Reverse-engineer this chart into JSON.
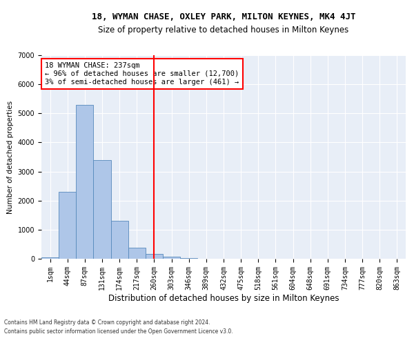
{
  "title1": "18, WYMAN CHASE, OXLEY PARK, MILTON KEYNES, MK4 4JT",
  "title2": "Size of property relative to detached houses in Milton Keynes",
  "xlabel": "Distribution of detached houses by size in Milton Keynes",
  "ylabel": "Number of detached properties",
  "footnote1": "Contains HM Land Registry data © Crown copyright and database right 2024.",
  "footnote2": "Contains public sector information licensed under the Open Government Licence v3.0.",
  "categories": [
    "1sqm",
    "44sqm",
    "87sqm",
    "131sqm",
    "174sqm",
    "217sqm",
    "260sqm",
    "303sqm",
    "346sqm",
    "389sqm",
    "432sqm",
    "475sqm",
    "518sqm",
    "561sqm",
    "604sqm",
    "648sqm",
    "691sqm",
    "734sqm",
    "777sqm",
    "820sqm",
    "863sqm"
  ],
  "values": [
    50,
    2300,
    5300,
    3400,
    1300,
    380,
    160,
    80,
    30,
    10,
    5,
    2,
    1,
    0,
    0,
    0,
    0,
    0,
    0,
    0,
    0
  ],
  "bar_color": "#aec6e8",
  "bar_edge_color": "#5588bb",
  "vline_x": 6.0,
  "vline_color": "red",
  "annotation_title": "18 WYMAN CHASE: 237sqm",
  "annotation_line1": "← 96% of detached houses are smaller (12,700)",
  "annotation_line2": "3% of semi-detached houses are larger (461) →",
  "annotation_box_color": "white",
  "annotation_box_edge": "red",
  "ylim": [
    0,
    7000
  ],
  "yticks": [
    0,
    1000,
    2000,
    3000,
    4000,
    5000,
    6000,
    7000
  ],
  "bg_color": "#e8eef7",
  "title1_fontsize": 9,
  "title2_fontsize": 8.5,
  "xlabel_fontsize": 8.5,
  "ylabel_fontsize": 7.5,
  "tick_fontsize": 7,
  "annotation_fontsize": 7.5,
  "footnote_fontsize": 5.5
}
